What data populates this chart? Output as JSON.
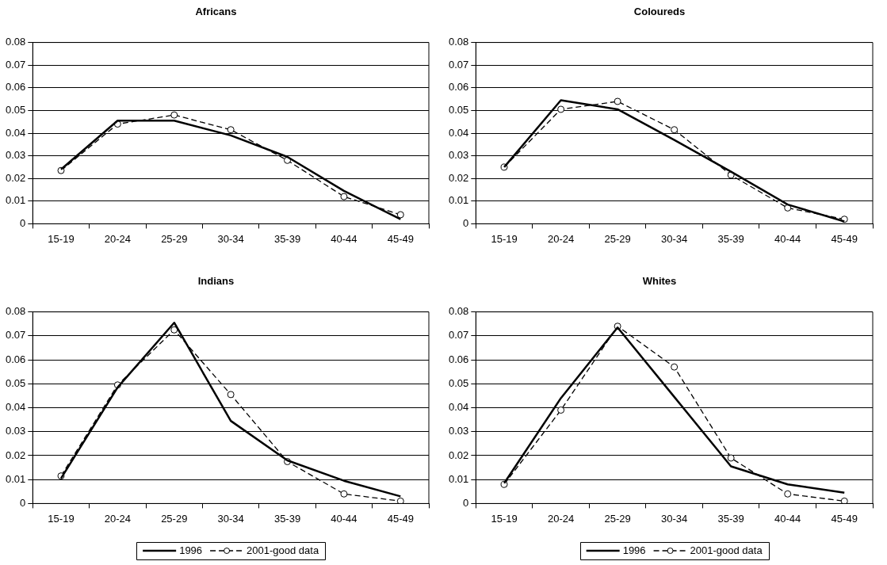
{
  "chart_data": [
    {
      "type": "line",
      "title": "Africans",
      "categories": [
        "15-19",
        "20-24",
        "25-29",
        "30-34",
        "35-39",
        "40-44",
        "45-49"
      ],
      "ylim": [
        0,
        0.08
      ],
      "yticks": [
        0,
        0.01,
        0.02,
        0.03,
        0.04,
        0.05,
        0.06,
        0.07,
        0.08
      ],
      "grid": "y",
      "legend": false,
      "series": [
        {
          "color": "#000000",
          "marker": "none",
          "line_style": "solid",
          "values": [
            0.024,
            0.0455,
            0.0455,
            0.039,
            0.0295,
            0.0145,
            0.002
          ]
        },
        {
          "color": "#000000",
          "marker": "circle",
          "line_style": "dashed",
          "values": [
            0.0235,
            0.044,
            0.048,
            0.0415,
            0.028,
            0.012,
            0.004
          ]
        }
      ]
    },
    {
      "type": "line",
      "title": "Coloureds",
      "categories": [
        "15-19",
        "20-24",
        "25-29",
        "30-34",
        "35-39",
        "40-44",
        "45-49"
      ],
      "ylim": [
        0,
        0.08
      ],
      "yticks": [
        0,
        0.01,
        0.02,
        0.03,
        0.04,
        0.05,
        0.06,
        0.07,
        0.08
      ],
      "grid": "y",
      "legend": false,
      "series": [
        {
          "color": "#000000",
          "marker": "none",
          "line_style": "solid",
          "values": [
            0.025,
            0.0545,
            0.0505,
            0.037,
            0.023,
            0.0085,
            0.001
          ]
        },
        {
          "color": "#000000",
          "marker": "circle",
          "line_style": "dashed",
          "values": [
            0.025,
            0.0505,
            0.054,
            0.0415,
            0.0215,
            0.007,
            0.002
          ]
        }
      ]
    },
    {
      "type": "line",
      "title": "Indians",
      "categories": [
        "15-19",
        "20-24",
        "25-29",
        "30-34",
        "35-39",
        "40-44",
        "45-49"
      ],
      "ylim": [
        0,
        0.08
      ],
      "yticks": [
        0,
        0.01,
        0.02,
        0.03,
        0.04,
        0.05,
        0.06,
        0.07,
        0.08
      ],
      "grid": "y",
      "legend": "bottom",
      "series": [
        {
          "name": "1996",
          "color": "#000000",
          "marker": "none",
          "line_style": "solid",
          "values": [
            0.0105,
            0.0485,
            0.0755,
            0.0345,
            0.018,
            0.0095,
            0.003
          ]
        },
        {
          "name": "2001-good data",
          "color": "#000000",
          "marker": "circle",
          "line_style": "dashed",
          "values": [
            0.0115,
            0.0495,
            0.0725,
            0.0455,
            0.0175,
            0.004,
            0.001
          ]
        }
      ]
    },
    {
      "type": "line",
      "title": "Whites",
      "categories": [
        "15-19",
        "20-24",
        "25-29",
        "30-34",
        "35-39",
        "40-44",
        "45-49"
      ],
      "ylim": [
        0,
        0.08
      ],
      "yticks": [
        0,
        0.01,
        0.02,
        0.03,
        0.04,
        0.05,
        0.06,
        0.07,
        0.08
      ],
      "grid": "y",
      "legend": "bottom",
      "series": [
        {
          "name": "1996",
          "color": "#000000",
          "marker": "none",
          "line_style": "solid",
          "values": [
            0.0085,
            0.044,
            0.0735,
            0.0445,
            0.0155,
            0.008,
            0.0045
          ]
        },
        {
          "name": "2001-good data",
          "color": "#000000",
          "marker": "circle",
          "line_style": "dashed",
          "values": [
            0.008,
            0.039,
            0.074,
            0.057,
            0.019,
            0.004,
            0.001
          ]
        }
      ]
    }
  ]
}
